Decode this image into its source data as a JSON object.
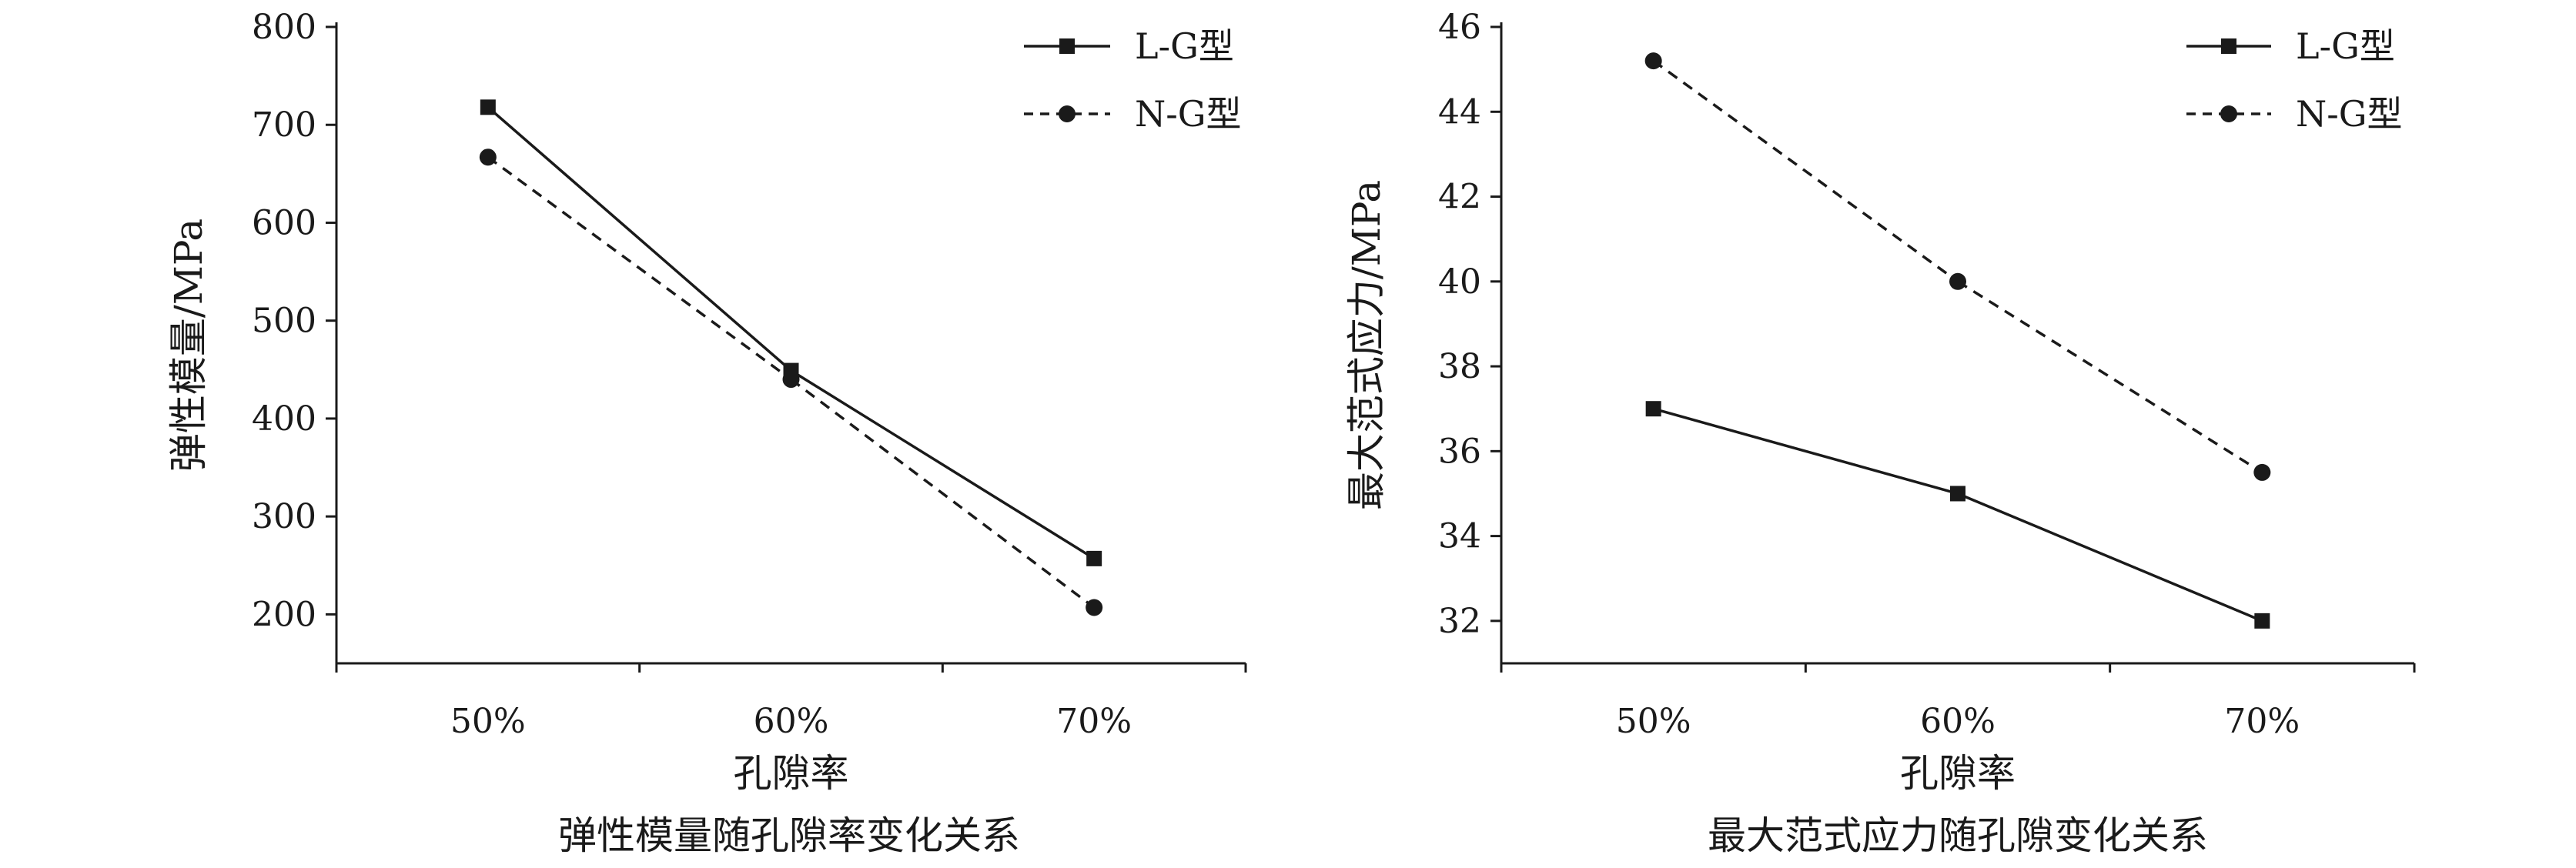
{
  "chart_data": [
    {
      "type": "line",
      "title": "",
      "caption": "弹性模量随孔隙率变化关系",
      "xlabel": "孔隙率",
      "ylabel": "弹性模量/MPa",
      "categories": [
        "50%",
        "60%",
        "70%"
      ],
      "ylim": [
        150,
        800
      ],
      "yticks": [
        200,
        300,
        400,
        500,
        600,
        700,
        800
      ],
      "legend_position": "top-right",
      "series": [
        {
          "name": "L-G型",
          "marker": "square",
          "line": "solid",
          "values": [
            718,
            449,
            257
          ]
        },
        {
          "name": "N-G型",
          "marker": "circle",
          "line": "dashed",
          "values": [
            667,
            440,
            207
          ]
        }
      ]
    },
    {
      "type": "line",
      "title": "",
      "caption": "最大范式应力随孔隙变化关系",
      "xlabel": "孔隙率",
      "ylabel": "最大范式应力/MPa",
      "categories": [
        "50%",
        "60%",
        "70%"
      ],
      "ylim": [
        31,
        46
      ],
      "yticks": [
        32,
        34,
        36,
        38,
        40,
        42,
        44,
        46
      ],
      "legend_position": "top-right",
      "series": [
        {
          "name": "L-G型",
          "marker": "square",
          "line": "solid",
          "values": [
            37,
            35,
            32
          ]
        },
        {
          "name": "N-G型",
          "marker": "circle",
          "line": "dashed",
          "values": [
            45.2,
            40,
            35.5
          ]
        }
      ]
    }
  ]
}
